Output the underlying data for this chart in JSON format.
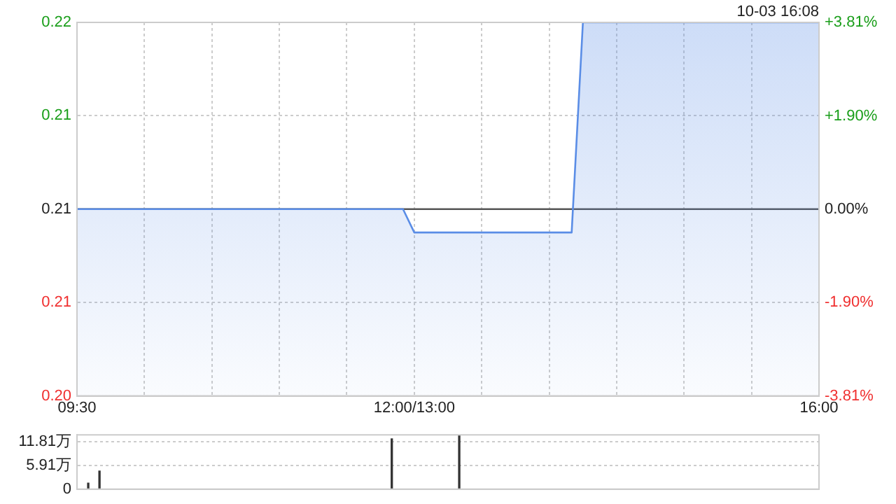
{
  "chart_data": [
    {
      "type": "area",
      "categories": [
        "09:30",
        null,
        null,
        null,
        null,
        null,
        null,
        null,
        null,
        null,
        null,
        null,
        null,
        null,
        null,
        null,
        null,
        null,
        null,
        null,
        null,
        null,
        null,
        null,
        null,
        null,
        null,
        null,
        null,
        null,
        "12:00/13:00",
        null,
        null,
        null,
        null,
        null,
        null,
        null,
        null,
        null,
        null,
        null,
        null,
        null,
        null,
        null,
        null,
        null,
        null,
        null,
        null,
        null,
        null,
        null,
        null,
        null,
        null,
        null,
        null,
        null,
        null,
        null,
        null,
        null,
        null,
        null,
        "16:00"
      ],
      "series": [
        {
          "color": "#5a8de6",
          "values": [
            0.21,
            0.21,
            0.21,
            0.21,
            0.21,
            0.21,
            0.21,
            0.21,
            0.21,
            0.21,
            0.21,
            0.21,
            0.21,
            0.21,
            0.21,
            0.21,
            0.21,
            0.21,
            0.21,
            0.21,
            0.21,
            0.21,
            0.21,
            0.21,
            0.21,
            0.21,
            0.21,
            0.21,
            0.21,
            0.21,
            0.209,
            0.209,
            0.209,
            0.209,
            0.209,
            0.209,
            0.209,
            0.209,
            0.209,
            0.209,
            0.209,
            0.209,
            0.209,
            0.209,
            0.209,
            0.218,
            0.218,
            0.218,
            0.218,
            0.218,
            0.218,
            0.218,
            0.218,
            0.218,
            0.218,
            0.218,
            0.218,
            0.218,
            0.218,
            0.218,
            0.218,
            0.218,
            0.218,
            0.218,
            0.218,
            0.218,
            0.218
          ]
        }
      ],
      "ylim": [
        0.202,
        0.218
      ],
      "yticks": [
        {
          "value": 0.202,
          "label": "0.20"
        },
        {
          "value": 0.206,
          "label": "0.21"
        },
        {
          "value": 0.21,
          "label": "0.21"
        },
        {
          "value": 0.214,
          "label": "0.21"
        },
        {
          "value": 0.218,
          "label": "0.22"
        }
      ],
      "y2lim": [
        -3.81,
        3.81
      ],
      "y2ticks": [
        {
          "value": -3.81,
          "label": "-3.81%"
        },
        {
          "value": -1.9,
          "label": "-1.90%"
        },
        {
          "value": 0,
          "label": "0.00%"
        },
        {
          "value": 1.9,
          "label": "+1.90%"
        },
        {
          "value": 3.81,
          "label": "+3.81%"
        }
      ],
      "ref_lines": [
        {
          "axis": "y",
          "value": 0.21,
          "color": "#555555"
        }
      ],
      "grid": true,
      "annotations": [
        "10-03 16:08"
      ]
    },
    {
      "type": "bar",
      "categories": [
        null,
        null,
        null,
        null,
        null,
        null,
        null,
        null,
        null,
        null,
        null,
        null,
        null,
        null,
        null,
        null,
        null,
        null,
        null,
        null,
        null,
        null,
        null,
        null,
        null,
        null,
        null,
        null,
        null,
        null,
        null,
        null,
        null,
        null,
        null,
        null,
        null,
        null,
        null,
        null,
        null,
        null,
        null,
        null,
        null,
        null,
        null,
        null,
        null,
        null,
        null,
        null,
        null,
        null,
        null,
        null,
        null,
        null,
        null,
        null,
        null,
        null,
        null,
        null,
        null,
        null,
        null
      ],
      "values": [
        null,
        1.5,
        4.5,
        null,
        null,
        null,
        null,
        null,
        null,
        null,
        null,
        null,
        null,
        null,
        null,
        null,
        null,
        null,
        null,
        null,
        null,
        null,
        null,
        null,
        null,
        null,
        null,
        null,
        12.5,
        null,
        null,
        null,
        null,
        null,
        13.4,
        null,
        null,
        null,
        null,
        null,
        null,
        null,
        null,
        null,
        null,
        null,
        null,
        null,
        null,
        null,
        null,
        null,
        null,
        null,
        null,
        null,
        null,
        null,
        null,
        null,
        null,
        null,
        null,
        null,
        null,
        null,
        null
      ],
      "color": "#333333",
      "ylim": [
        0,
        13.5
      ],
      "yticks": [
        {
          "value": 0,
          "label": "0"
        },
        {
          "value": 5.91,
          "label": "5.91万"
        },
        {
          "value": 11.81,
          "label": "11.81万"
        }
      ],
      "grid": "y",
      "tick_labels": "y"
    }
  ]
}
